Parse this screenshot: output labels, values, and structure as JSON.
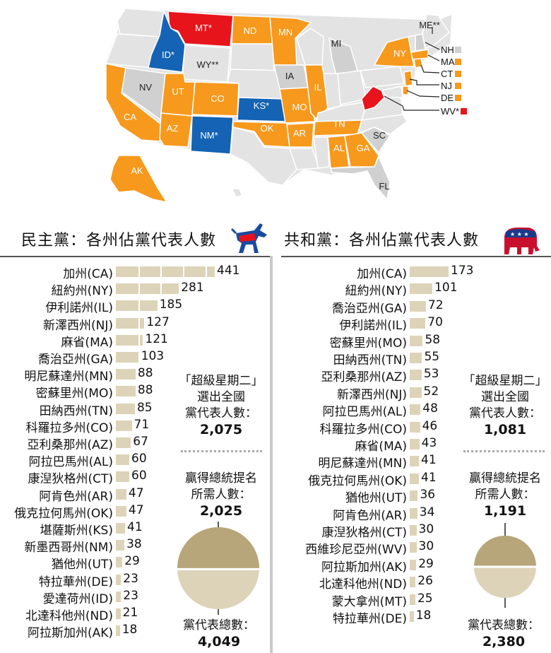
{
  "map": {
    "states": [
      {
        "abbr": "MT*",
        "color": "#e8141c"
      },
      {
        "abbr": "ND",
        "color": "#f7991c"
      },
      {
        "abbr": "MN",
        "color": "#f7991c"
      },
      {
        "abbr": "ID*",
        "color": "#1463b4"
      },
      {
        "abbr": "WY**",
        "color": "#d0d0d0"
      },
      {
        "abbr": "MI",
        "color": "#d0d0d0"
      },
      {
        "abbr": "NV",
        "color": "#d0d0d0"
      },
      {
        "abbr": "UT",
        "color": "#f7991c"
      },
      {
        "abbr": "CO",
        "color": "#f7991c"
      },
      {
        "abbr": "KS*",
        "color": "#1463b4"
      },
      {
        "abbr": "IA",
        "color": "#d0d0d0"
      },
      {
        "abbr": "IL",
        "color": "#f7991c"
      },
      {
        "abbr": "MO",
        "color": "#f7991c"
      },
      {
        "abbr": "CA",
        "color": "#f7991c"
      },
      {
        "abbr": "AZ",
        "color": "#f7991c"
      },
      {
        "abbr": "NM*",
        "color": "#1463b4"
      },
      {
        "abbr": "OK",
        "color": "#f7991c"
      },
      {
        "abbr": "AR",
        "color": "#f7991c"
      },
      {
        "abbr": "TN",
        "color": "#f7991c"
      },
      {
        "abbr": "AL",
        "color": "#f7991c"
      },
      {
        "abbr": "GA",
        "color": "#f7991c"
      },
      {
        "abbr": "SC",
        "color": "#d0d0d0"
      },
      {
        "abbr": "FL",
        "color": "#d0d0d0"
      },
      {
        "abbr": "AK",
        "color": "#f7991c"
      },
      {
        "abbr": "NY",
        "color": "#f7991c"
      },
      {
        "abbr": "ME**",
        "color": "#d0d0d0"
      }
    ],
    "legend": [
      {
        "abbr": "NH",
        "color": "#d0d0d0"
      },
      {
        "abbr": "MA",
        "color": "#f7991c"
      },
      {
        "abbr": "CT",
        "color": "#f7991c"
      },
      {
        "abbr": "NJ",
        "color": "#f7991c"
      },
      {
        "abbr": "DE",
        "color": "#f7991c"
      },
      {
        "abbr": "WV*",
        "color": "#e8141c"
      }
    ]
  },
  "chart_data": [
    {
      "type": "bar",
      "orientation": "horizontal",
      "title": "民主黨：各州佔黨代表人數",
      "categories": [
        "加州(CA)",
        "紐約州(NY)",
        "伊利諾州(IL)",
        "新澤西州(NJ)",
        "麻省(MA)",
        "喬治亞州(GA)",
        "明尼蘇達州(MN)",
        "密蘇里州(MO)",
        "田納西州(TN)",
        "科羅拉多州(CO)",
        "亞利桑那州(AZ)",
        "阿拉巴馬州(AL)",
        "康湼狄格州(CT)",
        "阿肯色州(AR)",
        "俄克拉何馬州(OK)",
        "堪薩斯州(KS)",
        "新墨西哥州(NM)",
        "猶他州(UT)",
        "特拉華州(DE)",
        "愛達荷州(ID)",
        "北達科他州(ND)",
        "阿拉斯加州(AK)"
      ],
      "values": [
        441,
        281,
        185,
        127,
        121,
        103,
        88,
        88,
        85,
        71,
        67,
        60,
        60,
        47,
        47,
        41,
        38,
        29,
        23,
        23,
        21,
        18
      ],
      "color": "#ddd3b8"
    },
    {
      "type": "bar",
      "orientation": "horizontal",
      "title": "共和黨：各州佔黨代表人數",
      "categories": [
        "加州(CA)",
        "紐約州(NY)",
        "喬治亞州(GA)",
        "伊利諾州(IL)",
        "密蘇里州(MO)",
        "田納西州(TN)",
        "亞利桑那州(AZ)",
        "新澤西州(NJ)",
        "阿拉巴馬州(AL)",
        "科羅拉多州(CO)",
        "麻省(MA)",
        "明尼蘇達州(MN)",
        "俄克拉何馬州(OK)",
        "猶他州(UT)",
        "阿肯色州(AR)",
        "康湼狄格州(CT)",
        "西維珍尼亞州(WV)",
        "阿拉斯加州(AK)",
        "北達科他州(ND)",
        "蒙大拿州(MT)",
        "特拉華州(DE)"
      ],
      "values": [
        173,
        101,
        72,
        70,
        58,
        55,
        53,
        52,
        48,
        46,
        43,
        41,
        41,
        36,
        34,
        30,
        30,
        29,
        26,
        25,
        18
      ],
      "color": "#ddd3b8"
    }
  ],
  "dem": {
    "title": "民主黨：各州佔黨代表人數",
    "stats": {
      "line1": "「超級星期二」",
      "line2": "選出全國",
      "line3": "黨代表人數：",
      "value": "2,075",
      "need1": "贏得總統提名",
      "need2": "所需人數：",
      "need_value": "2,025",
      "total_label": "黨代表總數：",
      "total_value": "4,049"
    },
    "fraction": 0.512
  },
  "rep": {
    "title": "共和黨：各州佔黨代表人數",
    "stats": {
      "line1": "「超級星期二」",
      "line2": "選出全國",
      "line3": "黨代表人數：",
      "value": "1,081",
      "need1": "贏得總統提名",
      "need2": "所需人數：",
      "need_value": "1,191",
      "total_label": "黨代表總數：",
      "total_value": "2,380"
    },
    "fraction": 0.5
  }
}
